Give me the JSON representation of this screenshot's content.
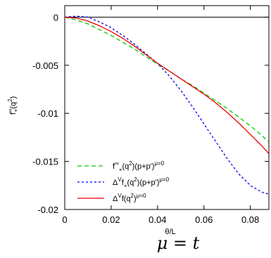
{
  "chart_data": {
    "type": "line",
    "xlabel": "θ/L",
    "ylabel_parts": {
      "base": "f",
      "sup": "∞",
      "sub": "+",
      "tail": "(q",
      "tail_sup": "2",
      "close": ")"
    },
    "xlim": [
      0,
      0.088
    ],
    "ylim": [
      -0.02,
      0.0012
    ],
    "xticks": [
      0,
      0.02,
      0.04,
      0.06,
      0.08
    ],
    "xtick_labels": [
      "0",
      "0.02",
      "0.04",
      "0.06",
      "0.08"
    ],
    "yticks": [
      0,
      -0.005,
      -0.01,
      -0.015,
      -0.02
    ],
    "ytick_labels": [
      "0",
      "-0.005",
      "-0.01",
      "-0.015",
      "-0.02"
    ],
    "reference_line": {
      "y": 0,
      "color": "#000000"
    },
    "legend_position": "bottom-left",
    "series": [
      {
        "key": "green",
        "legend": {
          "parts": [
            [
              "f",
              ""
            ],
            [
              "∞",
              "sup"
            ],
            [
              "+",
              "sub"
            ],
            [
              "(q",
              ""
            ],
            [
              "2",
              "sup"
            ],
            [
              ")(p+p')",
              ""
            ],
            [
              "μ=0",
              "sup"
            ]
          ]
        },
        "color": "#00cc00",
        "dash": "6,4",
        "x": [
          0,
          0.005,
          0.01,
          0.015,
          0.02,
          0.025,
          0.03,
          0.035,
          0.04,
          0.045,
          0.05,
          0.055,
          0.06,
          0.065,
          0.07,
          0.075,
          0.08,
          0.085,
          0.088
        ],
        "y": [
          0,
          -0.0003,
          -0.0007,
          -0.0013,
          -0.0019,
          -0.0026,
          -0.0033,
          -0.0041,
          -0.0049,
          -0.0056,
          -0.0064,
          -0.0071,
          -0.0079,
          -0.0087,
          -0.0095,
          -0.0104,
          -0.0113,
          -0.0123,
          -0.013
        ]
      },
      {
        "key": "blue",
        "legend": {
          "parts": [
            [
              "Δ",
              ""
            ],
            [
              "V",
              "sup"
            ],
            [
              "f",
              ""
            ],
            [
              "+",
              "sub"
            ],
            [
              "(q",
              ""
            ],
            [
              "2",
              "sup"
            ],
            [
              ")(p+p')",
              ""
            ],
            [
              "μ=0",
              "sup"
            ]
          ]
        },
        "color": "#0000ee",
        "dash": "3,3",
        "x": [
          0,
          0.005,
          0.01,
          0.015,
          0.02,
          0.025,
          0.03,
          0.035,
          0.04,
          0.045,
          0.05,
          0.055,
          0.06,
          0.065,
          0.07,
          0.075,
          0.08,
          0.085,
          0.088
        ],
        "y": [
          0,
          0.0001,
          0.0,
          -0.0005,
          -0.0011,
          -0.0019,
          -0.0028,
          -0.0038,
          -0.0048,
          -0.0061,
          -0.0076,
          -0.0093,
          -0.0111,
          -0.0129,
          -0.0147,
          -0.0163,
          -0.0175,
          -0.0182,
          -0.0184
        ]
      },
      {
        "key": "red",
        "legend": {
          "parts": [
            [
              "Δ",
              ""
            ],
            [
              "V",
              "sup"
            ],
            [
              "f(q",
              ""
            ],
            [
              "2",
              "sup"
            ],
            [
              ")",
              ""
            ],
            [
              "μ=0",
              "sup"
            ]
          ]
        },
        "color": "#ee0000",
        "dash": "",
        "x": [
          0,
          0.005,
          0.01,
          0.015,
          0.02,
          0.025,
          0.03,
          0.035,
          0.04,
          0.045,
          0.05,
          0.055,
          0.06,
          0.065,
          0.07,
          0.075,
          0.08,
          0.085,
          0.088
        ],
        "y": [
          0,
          -0.0001,
          -0.0004,
          -0.0009,
          -0.0015,
          -0.0022,
          -0.003,
          -0.0039,
          -0.0048,
          -0.0056,
          -0.0064,
          -0.0072,
          -0.008,
          -0.0089,
          -0.0099,
          -0.011,
          -0.0122,
          -0.0134,
          -0.0142
        ]
      }
    ]
  },
  "caption": "μ = t"
}
